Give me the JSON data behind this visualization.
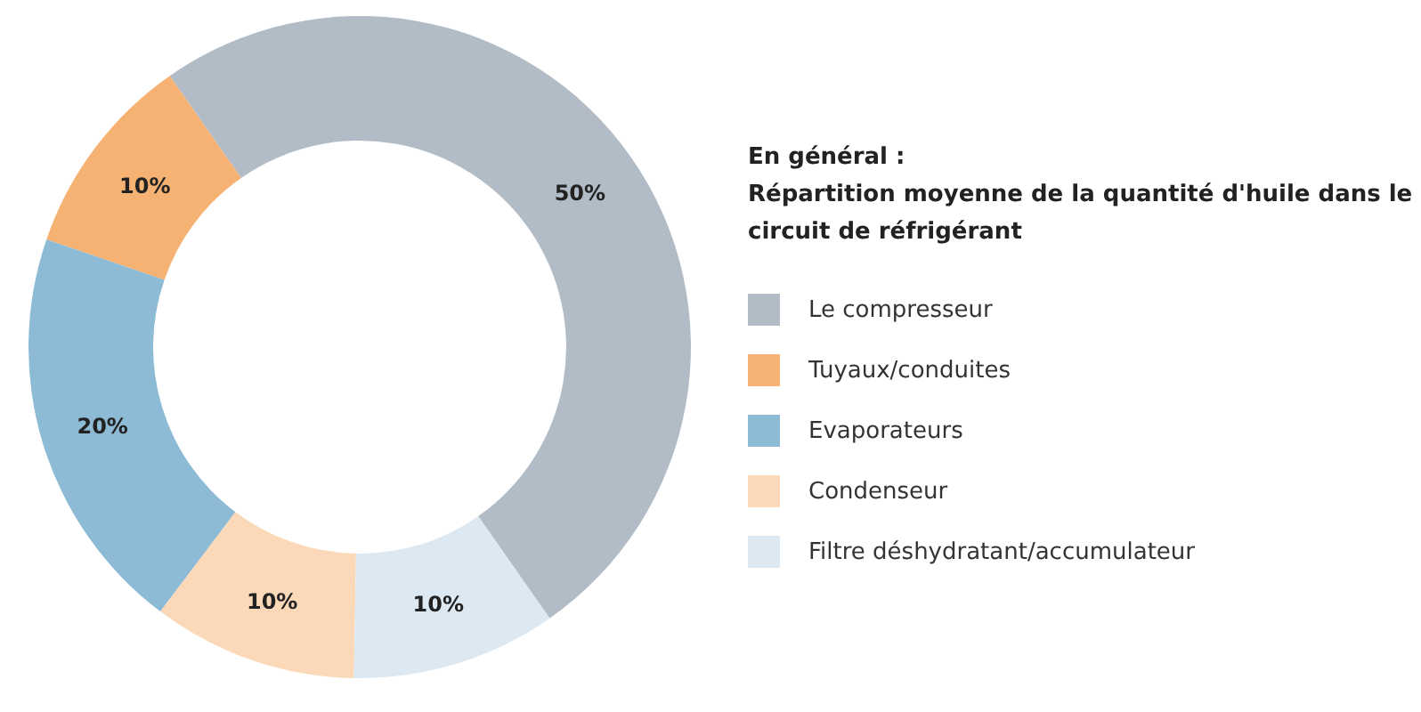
{
  "chart_data": {
    "type": "donut",
    "title": "En général :",
    "subtitle": "Répartition moyenne de la quantité d'huile dans le circuit de réfrigérant",
    "categories": [
      "Le compresseur",
      "Tuyaux/conduites",
      "Evaporateurs",
      "Condenseur",
      "Filtre déshydratant/accumulateur"
    ],
    "values": [
      50,
      10,
      20,
      10,
      10
    ],
    "colors": [
      "#b1bcc7",
      "#f6b273",
      "#8dbbd5",
      "#fbd8b8",
      "#dde9f2"
    ],
    "value_labels": [
      "50%",
      "10%",
      "20%",
      "10%",
      "10%"
    ],
    "legend": "right"
  }
}
